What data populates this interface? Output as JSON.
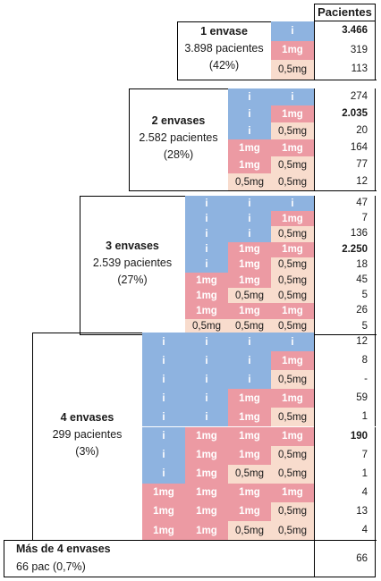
{
  "header": "Pacientes",
  "groups": [
    {
      "title": "1 envase",
      "patients": "3.898 pacientes",
      "pct": "(42%)",
      "rows": [
        {
          "cells": [
            "i"
          ],
          "value": "3.466",
          "bold": true
        },
        {
          "cells": [
            "1mg"
          ],
          "value": "319",
          "bold": false
        },
        {
          "cells": [
            "0,5mg"
          ],
          "value": "113",
          "bold": false
        }
      ]
    },
    {
      "title": "2 envases",
      "patients": "2.582 pacientes",
      "pct": "(28%)",
      "rows": [
        {
          "cells": [
            "i",
            "i"
          ],
          "value": "274",
          "bold": false
        },
        {
          "cells": [
            "i",
            "1mg"
          ],
          "value": "2.035",
          "bold": true
        },
        {
          "cells": [
            "i",
            "0,5mg"
          ],
          "value": "20",
          "bold": false
        },
        {
          "cells": [
            "1mg",
            "1mg"
          ],
          "value": "164",
          "bold": false
        },
        {
          "cells": [
            "1mg",
            "0,5mg"
          ],
          "value": "77",
          "bold": false
        },
        {
          "cells": [
            "0,5mg",
            "0,5mg"
          ],
          "value": "12",
          "bold": false
        }
      ]
    },
    {
      "title": "3 envases",
      "patients": "2.539 pacientes",
      "pct": "(27%)",
      "rows": [
        {
          "cells": [
            "i",
            "i",
            "i"
          ],
          "value": "47",
          "bold": false
        },
        {
          "cells": [
            "i",
            "i",
            "1mg"
          ],
          "value": "7",
          "bold": false
        },
        {
          "cells": [
            "i",
            "i",
            "0,5mg"
          ],
          "value": "136",
          "bold": false
        },
        {
          "cells": [
            "i",
            "1mg",
            "1mg"
          ],
          "value": "2.250",
          "bold": true
        },
        {
          "cells": [
            "i",
            "1mg",
            "0,5mg"
          ],
          "value": "18",
          "bold": false
        },
        {
          "cells": [
            "1mg",
            "1mg",
            "0,5mg"
          ],
          "value": "45",
          "bold": false
        },
        {
          "cells": [
            "1mg",
            "0,5mg",
            "0,5mg"
          ],
          "value": "5",
          "bold": false
        },
        {
          "cells": [
            "1mg",
            "1mg",
            "1mg"
          ],
          "value": "26",
          "bold": false
        },
        {
          "cells": [
            "0,5mg",
            "0,5mg",
            "0,5mg"
          ],
          "value": "5",
          "bold": false
        }
      ]
    },
    {
      "title": "4 envases",
      "patients": "299 pacientes",
      "pct": "(3%)",
      "rows": [
        {
          "cells": [
            "i",
            "i",
            "i",
            "i"
          ],
          "value": "12",
          "bold": false
        },
        {
          "cells": [
            "i",
            "i",
            "i",
            "1mg"
          ],
          "value": "8",
          "bold": false
        },
        {
          "cells": [
            "i",
            "i",
            "i",
            "0,5mg"
          ],
          "value": "-",
          "bold": false
        },
        {
          "cells": [
            "i",
            "i",
            "1mg",
            "1mg"
          ],
          "value": "59",
          "bold": false
        },
        {
          "cells": [
            "i",
            "i",
            "1mg",
            "0,5mg"
          ],
          "value": "1",
          "bold": false
        },
        {
          "cells": [
            "i",
            "1mg",
            "1mg",
            "1mg"
          ],
          "value": "190",
          "bold": true
        },
        {
          "cells": [
            "i",
            "1mg",
            "1mg",
            "0,5mg"
          ],
          "value": "7",
          "bold": false
        },
        {
          "cells": [
            "i",
            "1mg",
            "0,5mg",
            "0,5mg"
          ],
          "value": "1",
          "bold": false
        },
        {
          "cells": [
            "1mg",
            "1mg",
            "1mg",
            "1mg"
          ],
          "value": "4",
          "bold": false
        },
        {
          "cells": [
            "1mg",
            "1mg",
            "1mg",
            "0,5mg"
          ],
          "value": "13",
          "bold": false
        },
        {
          "cells": [
            "1mg",
            "1mg",
            "0,5mg",
            "0,5mg"
          ],
          "value": "4",
          "bold": false
        }
      ]
    }
  ],
  "more": {
    "title": "Más de 4  envases",
    "patients": "66 pac (0,7%)",
    "value": "66"
  }
}
